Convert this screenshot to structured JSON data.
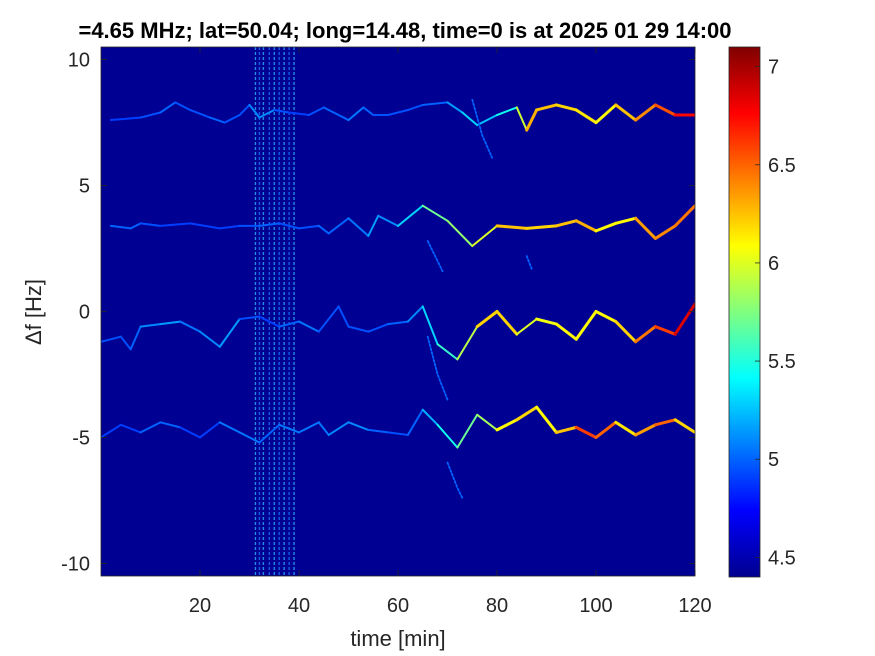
{
  "chart_data": {
    "type": "heatmap",
    "title": "=4.65 MHz;  lat=50.04; long=14.48, time=0 is at 2025 01 29 14:00",
    "xlabel": "time [min]",
    "ylabel": "Δf [Hz]",
    "xlim": [
      0,
      120
    ],
    "ylim": [
      -10.5,
      10.5
    ],
    "x_ticks": [
      "20",
      "40",
      "60",
      "80",
      "100",
      "120"
    ],
    "x_tick_values": [
      20,
      40,
      60,
      80,
      100,
      120
    ],
    "y_ticks": [
      "10",
      "5",
      "0",
      "-5",
      "-10"
    ],
    "y_tick_values": [
      10,
      5,
      0,
      -5,
      -10
    ],
    "colorbar": {
      "colormap": "jet",
      "range": [
        4.4,
        7.1
      ],
      "ticks": [
        "7",
        "6.5",
        "6",
        "5.5",
        "5",
        "4.5"
      ],
      "tick_values": [
        7,
        6.5,
        6,
        5.5,
        5,
        4.5
      ]
    },
    "background_level": 4.45,
    "traces": [
      {
        "name": "",
        "points": [
          [
            2,
            7.6
          ],
          [
            8,
            7.7
          ],
          [
            12,
            7.9
          ],
          [
            15,
            8.3
          ],
          [
            18,
            8.0
          ],
          [
            22,
            7.7
          ],
          [
            25,
            7.5
          ],
          [
            28,
            7.8
          ],
          [
            30,
            8.2
          ],
          [
            32,
            7.7
          ],
          [
            35,
            8.0
          ],
          [
            38,
            7.9
          ],
          [
            42,
            7.8
          ],
          [
            45,
            8.1
          ],
          [
            48,
            7.8
          ],
          [
            50,
            7.6
          ],
          [
            53,
            8.1
          ],
          [
            55,
            7.8
          ],
          [
            58,
            7.8
          ],
          [
            62,
            8.0
          ],
          [
            65,
            8.2
          ],
          [
            70,
            8.3
          ],
          [
            73,
            7.9
          ],
          [
            76,
            7.4
          ],
          [
            80,
            7.8
          ],
          [
            84,
            8.1
          ],
          [
            86,
            7.2
          ],
          [
            88,
            8.0
          ],
          [
            92,
            8.2
          ],
          [
            96,
            8.0
          ],
          [
            100,
            7.5
          ],
          [
            104,
            8.2
          ],
          [
            108,
            7.6
          ],
          [
            112,
            8.2
          ],
          [
            116,
            7.8
          ],
          [
            120,
            7.8
          ]
        ],
        "values": [
          4.9,
          4.9,
          5.0,
          5.0,
          4.9,
          5.0,
          5.0,
          4.9,
          5.0,
          5.2,
          5.0,
          4.9,
          4.9,
          5.0,
          5.0,
          5.0,
          5.1,
          4.9,
          5.0,
          4.9,
          5.0,
          5.0,
          5.3,
          5.3,
          5.2,
          5.7,
          6.2,
          6.4,
          6.1,
          6.3,
          6.0,
          6.2,
          6.3,
          6.5,
          6.6,
          6.9
        ]
      },
      {
        "name": "",
        "points": [
          [
            2,
            3.4
          ],
          [
            6,
            3.3
          ],
          [
            8,
            3.5
          ],
          [
            12,
            3.4
          ],
          [
            18,
            3.5
          ],
          [
            24,
            3.3
          ],
          [
            28,
            3.4
          ],
          [
            32,
            3.4
          ],
          [
            36,
            3.5
          ],
          [
            40,
            3.3
          ],
          [
            44,
            3.4
          ],
          [
            46,
            3.1
          ],
          [
            50,
            3.7
          ],
          [
            54,
            3.0
          ],
          [
            56,
            3.8
          ],
          [
            60,
            3.4
          ],
          [
            65,
            4.2
          ],
          [
            70,
            3.6
          ],
          [
            75,
            2.6
          ],
          [
            80,
            3.4
          ],
          [
            86,
            3.3
          ],
          [
            92,
            3.4
          ],
          [
            96,
            3.6
          ],
          [
            100,
            3.2
          ],
          [
            104,
            3.5
          ],
          [
            108,
            3.7
          ],
          [
            112,
            2.9
          ],
          [
            116,
            3.4
          ],
          [
            120,
            4.2
          ]
        ],
        "values": [
          5.0,
          5.0,
          5.0,
          4.9,
          4.9,
          4.9,
          4.9,
          5.0,
          5.0,
          4.9,
          5.0,
          5.0,
          5.0,
          5.1,
          5.2,
          5.0,
          5.6,
          5.8,
          5.8,
          6.2,
          6.3,
          6.1,
          6.4,
          6.2,
          6.0,
          6.2,
          6.5,
          6.3,
          6.6
        ]
      },
      {
        "name": "",
        "points": [
          [
            0,
            -1.2
          ],
          [
            4,
            -1.0
          ],
          [
            6,
            -1.5
          ],
          [
            8,
            -0.6
          ],
          [
            12,
            -0.5
          ],
          [
            16,
            -0.4
          ],
          [
            20,
            -0.8
          ],
          [
            24,
            -1.4
          ],
          [
            28,
            -0.3
          ],
          [
            32,
            -0.2
          ],
          [
            36,
            -0.6
          ],
          [
            40,
            -0.4
          ],
          [
            44,
            -0.8
          ],
          [
            48,
            0.2
          ],
          [
            50,
            -0.6
          ],
          [
            54,
            -0.8
          ],
          [
            58,
            -0.5
          ],
          [
            62,
            -0.4
          ],
          [
            65,
            0.2
          ],
          [
            68,
            -1.3
          ],
          [
            72,
            -1.9
          ],
          [
            76,
            -0.6
          ],
          [
            80,
            0.0
          ],
          [
            84,
            -0.9
          ],
          [
            88,
            -0.3
          ],
          [
            92,
            -0.5
          ],
          [
            96,
            -1.1
          ],
          [
            100,
            0.0
          ],
          [
            104,
            -0.4
          ],
          [
            108,
            -1.2
          ],
          [
            112,
            -0.6
          ],
          [
            116,
            -0.9
          ],
          [
            120,
            0.3
          ]
        ],
        "values": [
          4.9,
          5.0,
          4.9,
          5.1,
          5.1,
          5.2,
          4.9,
          5.3,
          5.0,
          4.9,
          4.9,
          5.1,
          5.0,
          4.9,
          5.0,
          4.9,
          5.0,
          5.0,
          5.2,
          5.4,
          5.7,
          6.1,
          6.3,
          6.1,
          5.9,
          6.2,
          6.0,
          6.2,
          6.0,
          6.4,
          6.5,
          6.7,
          7.0
        ]
      },
      {
        "name": "",
        "points": [
          [
            0,
            -5.0
          ],
          [
            4,
            -4.5
          ],
          [
            8,
            -4.8
          ],
          [
            12,
            -4.4
          ],
          [
            16,
            -4.6
          ],
          [
            20,
            -5.0
          ],
          [
            24,
            -4.4
          ],
          [
            28,
            -4.8
          ],
          [
            32,
            -5.2
          ],
          [
            36,
            -4.5
          ],
          [
            40,
            -4.8
          ],
          [
            44,
            -4.4
          ],
          [
            46,
            -4.9
          ],
          [
            50,
            -4.4
          ],
          [
            54,
            -4.7
          ],
          [
            58,
            -4.8
          ],
          [
            62,
            -4.9
          ],
          [
            65,
            -3.9
          ],
          [
            68,
            -4.5
          ],
          [
            72,
            -5.4
          ],
          [
            76,
            -4.1
          ],
          [
            80,
            -4.7
          ],
          [
            84,
            -4.3
          ],
          [
            88,
            -3.8
          ],
          [
            92,
            -4.8
          ],
          [
            96,
            -4.6
          ],
          [
            100,
            -5.0
          ],
          [
            104,
            -4.4
          ],
          [
            108,
            -4.9
          ],
          [
            112,
            -4.5
          ],
          [
            116,
            -4.3
          ],
          [
            120,
            -4.8
          ]
        ],
        "values": [
          4.9,
          4.9,
          4.9,
          5.1,
          4.9,
          4.9,
          4.9,
          5.2,
          4.9,
          5.1,
          5.0,
          5.1,
          5.0,
          5.2,
          5.0,
          5.0,
          4.9,
          5.1,
          5.3,
          5.6,
          5.8,
          5.9,
          6.3,
          6.1,
          6.1,
          6.4,
          6.8,
          6.2,
          6.1,
          6.6,
          6.4,
          6.0
        ]
      }
    ],
    "spurs": [
      [
        [
          66,
          -1.0
        ],
        [
          68,
          -2.5
        ],
        [
          70,
          -3.5
        ]
      ],
      [
        [
          75,
          8.4
        ],
        [
          77,
          7.0
        ],
        [
          79,
          6.1
        ]
      ],
      [
        [
          66,
          2.8
        ],
        [
          68,
          2.0
        ],
        [
          69,
          1.6
        ]
      ],
      [
        [
          86,
          2.2
        ],
        [
          87,
          1.7
        ]
      ],
      [
        [
          70,
          -6.0
        ],
        [
          72,
          -7.0
        ],
        [
          73,
          -7.4
        ]
      ]
    ],
    "spur_value": 5.0,
    "vertical_interference_x": [
      31.2,
      32.0,
      32.8,
      34.0,
      35.0,
      36.0,
      37.0,
      38.0,
      39.0
    ]
  }
}
